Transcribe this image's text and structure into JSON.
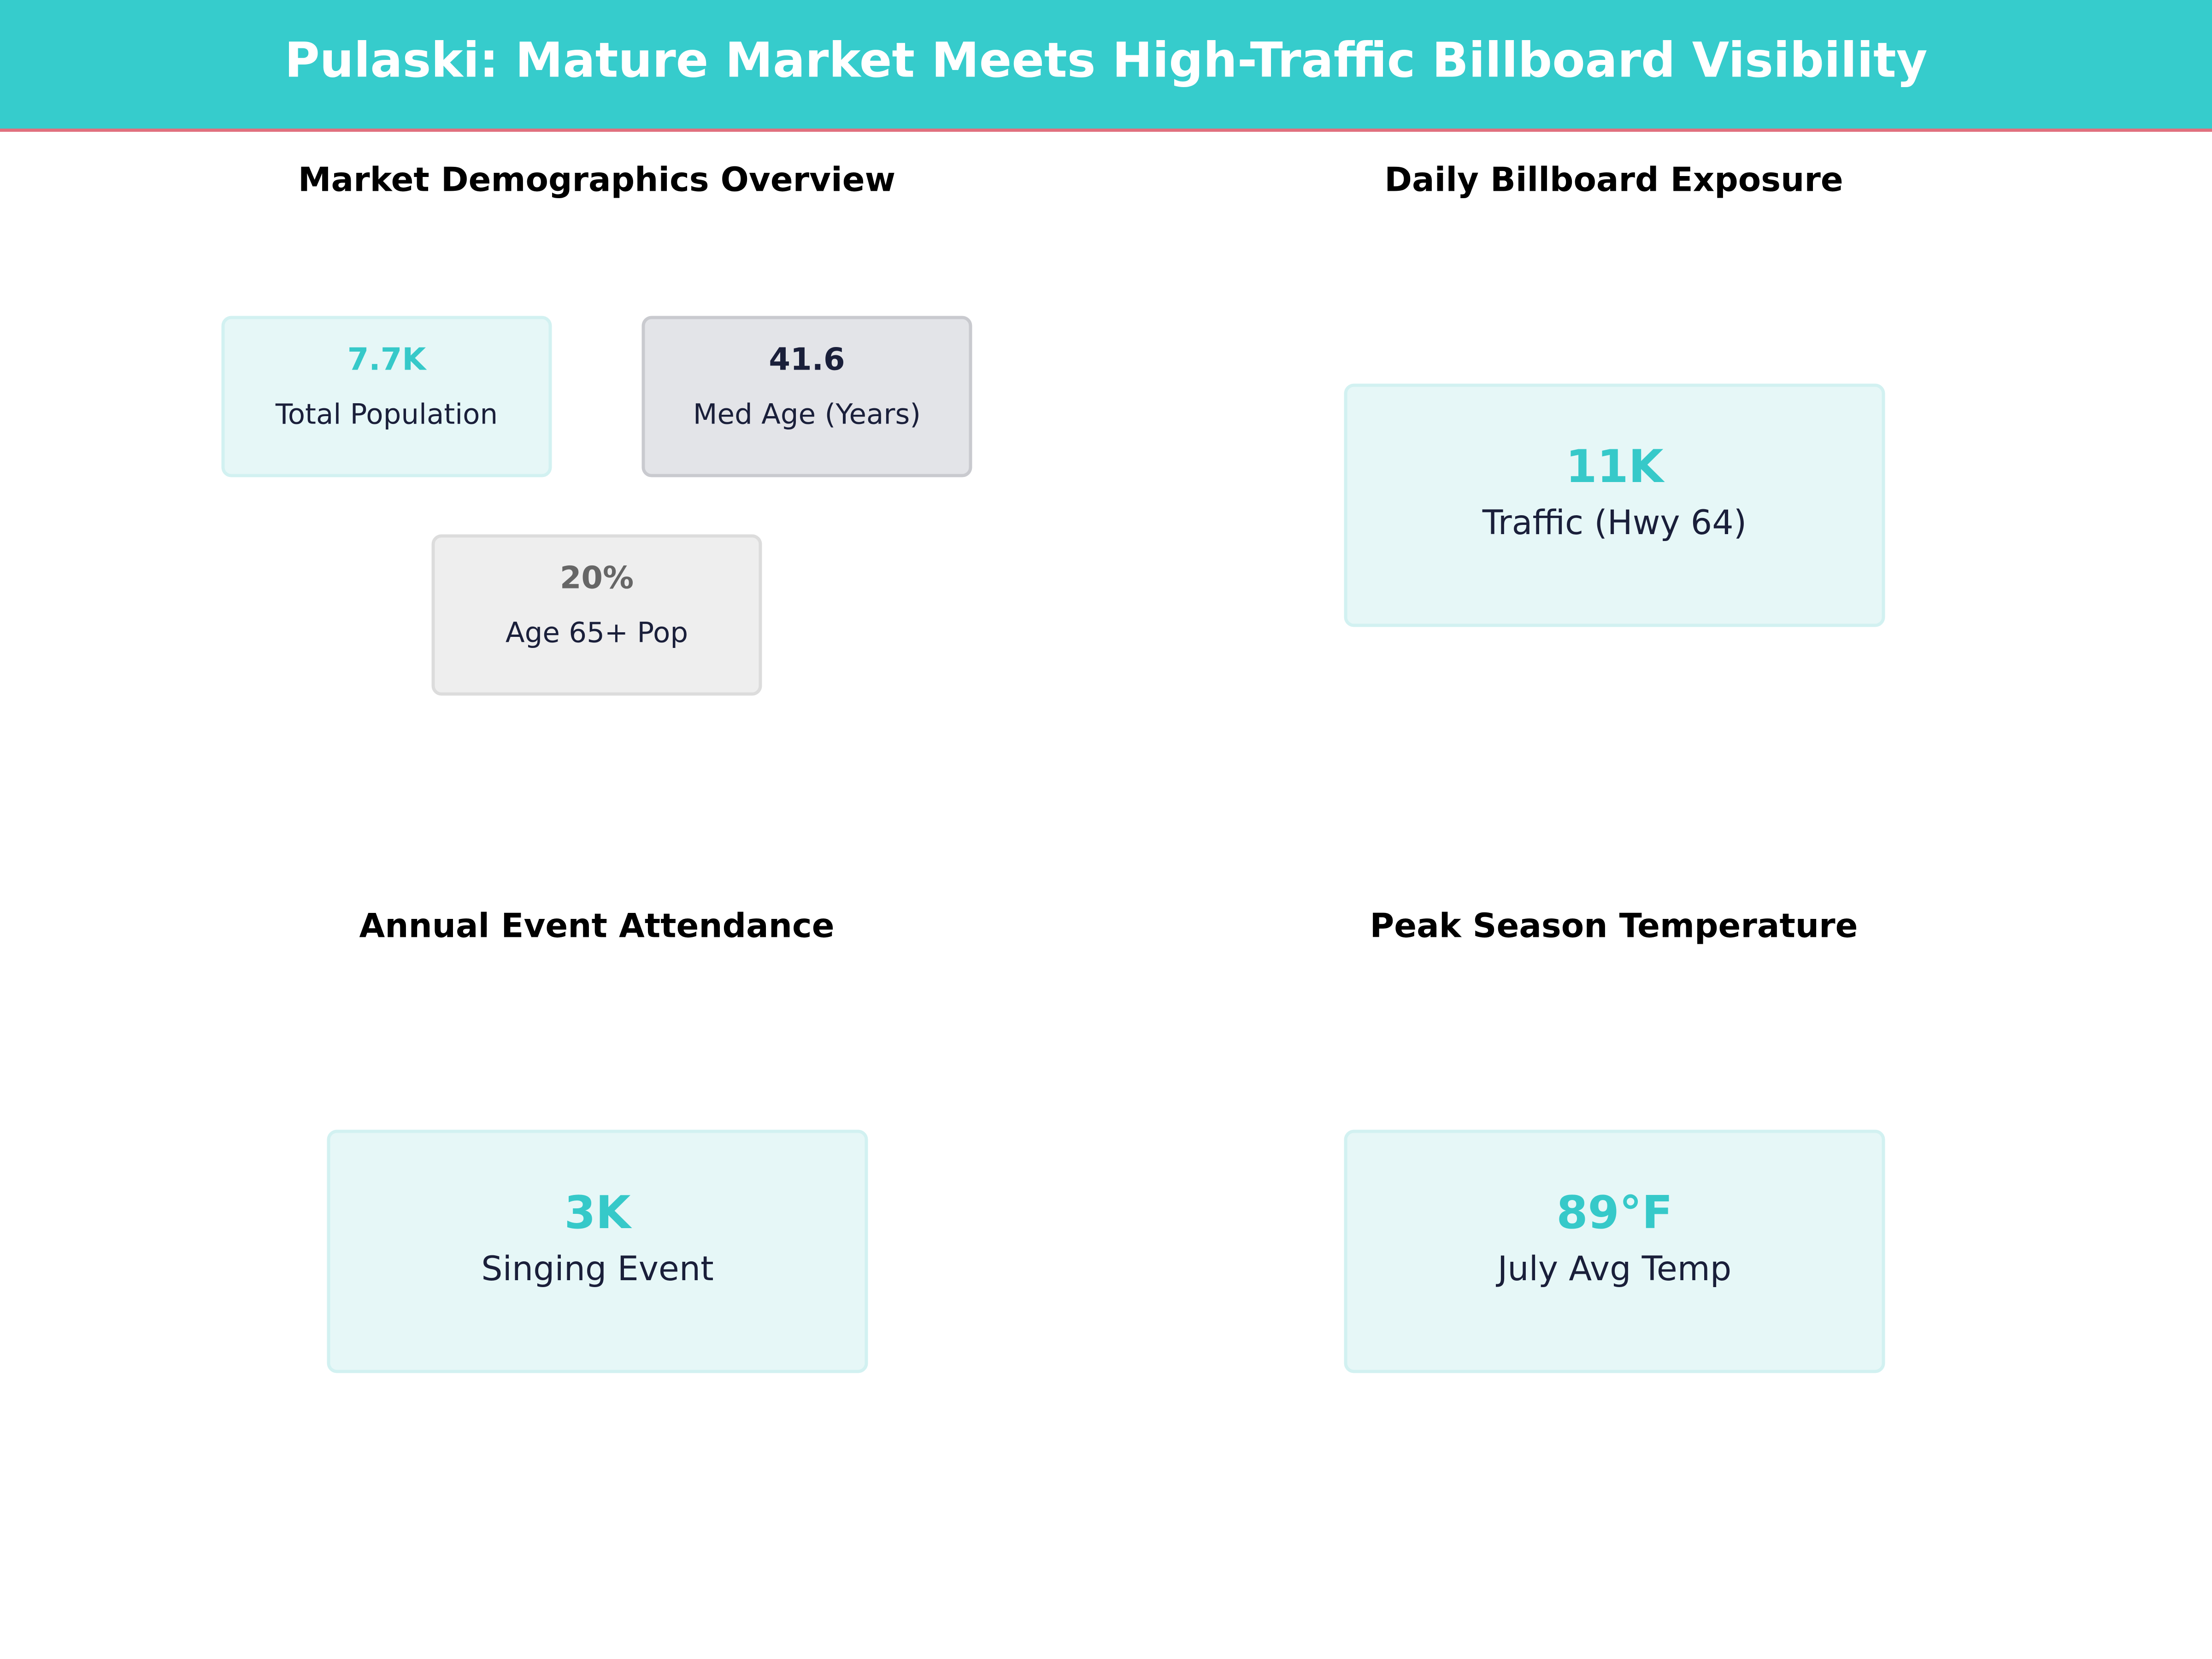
{
  "header": {
    "title": "Pulaski: Mature Market Meets High-Traffic Billboard Visibility"
  },
  "panels": [
    {
      "title": "Market Demographics Overview",
      "cards": [
        {
          "value": "7.7K",
          "label": "Total Population"
        },
        {
          "value": "41.6",
          "label": "Med Age (Years)"
        },
        {
          "value": "20%",
          "label": "Age 65+ Pop"
        }
      ]
    },
    {
      "title": "Daily Billboard Exposure",
      "cards": [
        {
          "value": "11K",
          "label": "Traffic (Hwy 64)"
        }
      ]
    },
    {
      "title": "Annual Event Attendance",
      "cards": [
        {
          "value": "3K",
          "label": "Singing Event"
        }
      ]
    },
    {
      "title": "Peak Season Temperature",
      "cards": [
        {
          "value": "89°F",
          "label": "July Avg Temp"
        }
      ]
    }
  ]
}
